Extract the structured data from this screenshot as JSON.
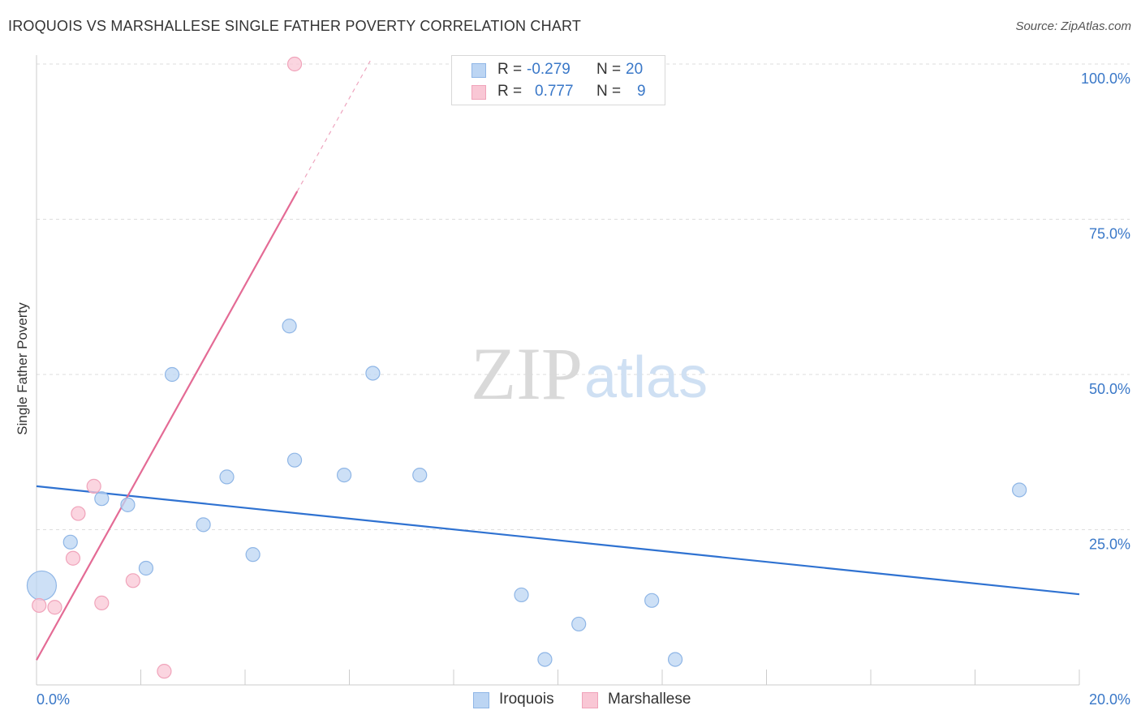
{
  "title": "IROQUOIS VS MARSHALLESE SINGLE FATHER POVERTY CORRELATION CHART",
  "source": "Source: ZipAtlas.com",
  "watermark": {
    "zip": "ZIP",
    "atlas": "atlas"
  },
  "stats": [
    {
      "r_label": "R =",
      "r_value": "-0.279",
      "n_label": "N =",
      "n_value": "20"
    },
    {
      "r_label": "R =",
      "r_value": "0.777",
      "n_label": "N =",
      "n_value": "9"
    }
  ],
  "legend": {
    "iroquois": "Iroquois",
    "marshallese": "Marshallese"
  },
  "colors": {
    "iroquois_fill": "#bcd5f3",
    "iroquois_stroke": "#8fb6e6",
    "iroquois_line": "#2f72d1",
    "marshallese_fill": "#f9c7d5",
    "marshallese_stroke": "#f0a3ba",
    "marshallese_line": "#e46b95",
    "axis_label": "#3a78c8",
    "grid": "#dddddd"
  },
  "chart_data": {
    "type": "scatter",
    "title": "IROQUOIS VS MARSHALLESE SINGLE FATHER POVERTY CORRELATION CHART",
    "xlabel": "",
    "ylabel": "Single Father Poverty",
    "xlim": [
      0,
      20
    ],
    "ylim": [
      0,
      100
    ],
    "x_tick_labels": [
      "0.0%",
      "20.0%"
    ],
    "y_tick_labels": [
      "25.0%",
      "50.0%",
      "75.0%",
      "100.0%"
    ],
    "y_ticks": [
      25,
      50,
      75,
      100
    ],
    "grid": true,
    "series": [
      {
        "name": "Iroquois",
        "points": [
          {
            "x": 0.1,
            "y": 16.0,
            "big": true
          },
          {
            "x": 0.65,
            "y": 23.0
          },
          {
            "x": 1.25,
            "y": 30.0
          },
          {
            "x": 1.75,
            "y": 29.0
          },
          {
            "x": 2.1,
            "y": 18.8
          },
          {
            "x": 2.6,
            "y": 50.0
          },
          {
            "x": 3.2,
            "y": 25.8
          },
          {
            "x": 3.65,
            "y": 33.5
          },
          {
            "x": 4.15,
            "y": 21.0
          },
          {
            "x": 4.85,
            "y": 57.8
          },
          {
            "x": 4.95,
            "y": 36.2
          },
          {
            "x": 5.9,
            "y": 33.8
          },
          {
            "x": 6.45,
            "y": 50.2
          },
          {
            "x": 7.35,
            "y": 33.8
          },
          {
            "x": 9.3,
            "y": 14.5
          },
          {
            "x": 10.4,
            "y": 9.8
          },
          {
            "x": 11.8,
            "y": 13.6
          },
          {
            "x": 12.25,
            "y": 4.1
          },
          {
            "x": 18.85,
            "y": 31.4
          },
          {
            "x": 9.75,
            "y": 4.1
          }
        ],
        "trend": {
          "x1": 0,
          "y1": 32.0,
          "x2": 20,
          "y2": 14.6
        }
      },
      {
        "name": "Marshallese",
        "points": [
          {
            "x": 0.05,
            "y": 12.8
          },
          {
            "x": 0.35,
            "y": 12.5
          },
          {
            "x": 0.7,
            "y": 20.4
          },
          {
            "x": 0.8,
            "y": 27.6
          },
          {
            "x": 1.1,
            "y": 32.0
          },
          {
            "x": 1.25,
            "y": 13.2
          },
          {
            "x": 1.85,
            "y": 16.8
          },
          {
            "x": 2.45,
            "y": 2.2
          },
          {
            "x": 4.95,
            "y": 100.0
          }
        ],
        "trend": {
          "x1": 0,
          "y1": 4.0,
          "x2": 5.0,
          "y2": 79.5
        },
        "trend_extension": {
          "x1": 5.0,
          "y1": 79.5,
          "x2": 6.4,
          "y2": 100.5
        }
      }
    ]
  }
}
